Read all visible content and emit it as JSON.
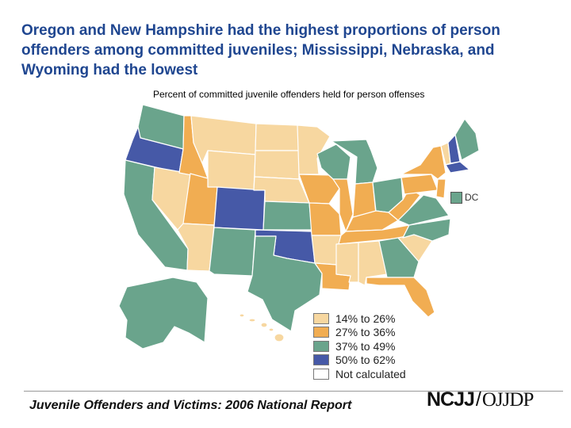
{
  "title": "Oregon and New Hampshire had the highest proportions of person offenders among committed juveniles; Mississippi, Nebraska, and Wyoming had the lowest",
  "subtitle": "Percent of committed juvenile offenders held for person offenses",
  "colors": {
    "c1": "#f7d7a0",
    "c2": "#f1ad52",
    "c3": "#6aa48c",
    "c4": "#4659a7",
    "nc": "#ffffff",
    "border": "#ffffff"
  },
  "legend": [
    {
      "label": "14% to 26%",
      "color": "#f7d7a0"
    },
    {
      "label": "27% to 36%",
      "color": "#f1ad52"
    },
    {
      "label": "37% to 49%",
      "color": "#6aa48c"
    },
    {
      "label": "50% to 62%",
      "color": "#4659a7"
    },
    {
      "label": "Not calculated",
      "color": "#ffffff"
    }
  ],
  "dc_label": "DC",
  "footer": "Juvenile Offenders and Victims: 2006 National Report",
  "logo": {
    "left": "NCJJ",
    "sep": "/",
    "right": "OJJDP"
  },
  "states": {
    "WA": "c3",
    "OR": "c4",
    "CA": "c3",
    "NV": "c1",
    "ID": "c2",
    "MT": "c1",
    "WY": "c1",
    "UT": "c2",
    "AZ": "c1",
    "CO": "c4",
    "NM": "c3",
    "ND": "c1",
    "SD": "c1",
    "NE": "c1",
    "KS": "c3",
    "OK": "c4",
    "TX": "c3",
    "MN": "c1",
    "IA": "c2",
    "MO": "c2",
    "AR": "c1",
    "LA": "c2",
    "WI": "c3",
    "IL": "c2",
    "MI": "c3",
    "IN": "c2",
    "OH": "c3",
    "KY": "c2",
    "TN": "c2",
    "MS": "c1",
    "AL": "c1",
    "GA": "c3",
    "FL": "c2",
    "SC": "c1",
    "NC": "c3",
    "VA": "c3",
    "WV": "c2",
    "PA": "c2",
    "NY": "c2",
    "VT": "c1",
    "NH": "c4",
    "ME": "c3",
    "MA": "c4",
    "NJ": "c2",
    "AK": "c3",
    "HI": "c1"
  }
}
